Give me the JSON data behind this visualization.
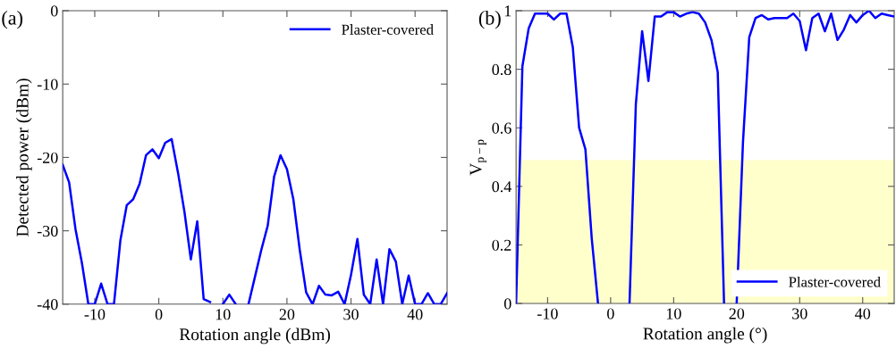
{
  "chart_data": [
    {
      "type": "line",
      "xlabel": "Rotation angle (dBm)",
      "ylabel": "Detected power (dBm)",
      "annotations": [
        "(a)"
      ],
      "x": [
        -15,
        -14,
        -13,
        -12,
        -11,
        -10,
        -9,
        -8,
        -7,
        -6,
        -5,
        -4,
        -3,
        -2,
        -1,
        0,
        1,
        2,
        3,
        4,
        5,
        6,
        7,
        8,
        9,
        10,
        11,
        12,
        13,
        14,
        15,
        16,
        17,
        18,
        19,
        20,
        21,
        22,
        23,
        24,
        25,
        26,
        27,
        28,
        29,
        30,
        31,
        32,
        33,
        34,
        35,
        36,
        37,
        38,
        39,
        40,
        41,
        42,
        43,
        44,
        45
      ],
      "series": [
        {
          "name": "Plaster-covered",
          "color": "#0000ff",
          "values": [
            -21,
            -23.4,
            -29.8,
            -34.4,
            -40,
            -40,
            -37.2,
            -40,
            -40,
            -31.3,
            -26.5,
            -25.7,
            -23.6,
            -19.7,
            -18.9,
            -20.1,
            -18.0,
            -17.5,
            -22.1,
            -27.4,
            -33.9,
            -28.7,
            -39.3,
            -39.7,
            null,
            -40,
            -38.7,
            -40,
            null,
            -40,
            -36.3,
            -32.6,
            -29.3,
            -22.6,
            -19.7,
            -21.6,
            -25.7,
            -32.6,
            -38.4,
            -40,
            -37.5,
            -38.7,
            -38.8,
            -38.3,
            -40,
            -36,
            -31.1,
            -38.7,
            -40,
            -33.9,
            -40,
            -32.5,
            -34.2,
            -40,
            -36.1,
            -40,
            -40,
            -38.5,
            -40,
            -40,
            -38.5
          ]
        }
      ],
      "xlim": [
        -15,
        45
      ],
      "xticks": [
        -10,
        0,
        10,
        20,
        30,
        40
      ],
      "ylim": [
        -40,
        0
      ],
      "yticks": [
        -40,
        -30,
        -20,
        -10,
        0
      ],
      "legend": "top right",
      "grid": false
    },
    {
      "type": "line",
      "xlabel": "Rotation angle (°)",
      "ylabel": "V$_{p−p}$",
      "annotations": [
        "(b)"
      ],
      "x": [
        -15,
        -14,
        -13,
        -12,
        -11,
        -10,
        -9,
        -8,
        -7,
        -6,
        -5,
        -4,
        -3,
        -2,
        -1,
        0,
        1,
        2,
        3,
        4,
        5,
        6,
        7,
        8,
        9,
        10,
        11,
        12,
        13,
        14,
        15,
        16,
        17,
        18,
        19,
        20,
        21,
        22,
        23,
        24,
        25,
        26,
        27,
        28,
        29,
        30,
        31,
        32,
        33,
        34,
        35,
        36,
        37,
        38,
        39,
        40,
        41,
        42,
        43,
        44,
        45
      ],
      "series": [
        {
          "name": "Plaster-covered",
          "color": "#0000ff",
          "values": [
            0,
            0.81,
            0.94,
            0.99,
            0.99,
            0.99,
            0.97,
            0.99,
            0.99,
            0.875,
            0.6,
            0.526,
            0.223,
            0,
            null,
            null,
            null,
            null,
            0,
            0.68,
            0.93,
            0.76,
            0.98,
            0.98,
            0.995,
            0.995,
            0.98,
            0.99,
            0.995,
            0.99,
            0.96,
            0.9,
            0.79,
            0,
            null,
            0,
            0.55,
            0.91,
            0.975,
            0.985,
            0.97,
            0.975,
            0.975,
            0.975,
            0.99,
            0.965,
            0.865,
            0.975,
            0.99,
            0.93,
            0.99,
            0.9,
            0.935,
            0.985,
            0.96,
            0.985,
            1.0,
            0.975,
            0.99,
            0.985,
            0.98
          ]
        }
      ],
      "bands": [
        {
          "axis": "y",
          "from": 0,
          "to": 0.49,
          "color": "#ffffcc"
        }
      ],
      "xlim": [
        -15,
        45
      ],
      "xticks": [
        -10,
        0,
        10,
        20,
        30,
        40
      ],
      "ylim": [
        0,
        1
      ],
      "yticks": [
        0,
        0.2,
        0.4,
        0.6,
        0.8,
        1
      ],
      "legend": "bottom right",
      "grid": false
    }
  ]
}
